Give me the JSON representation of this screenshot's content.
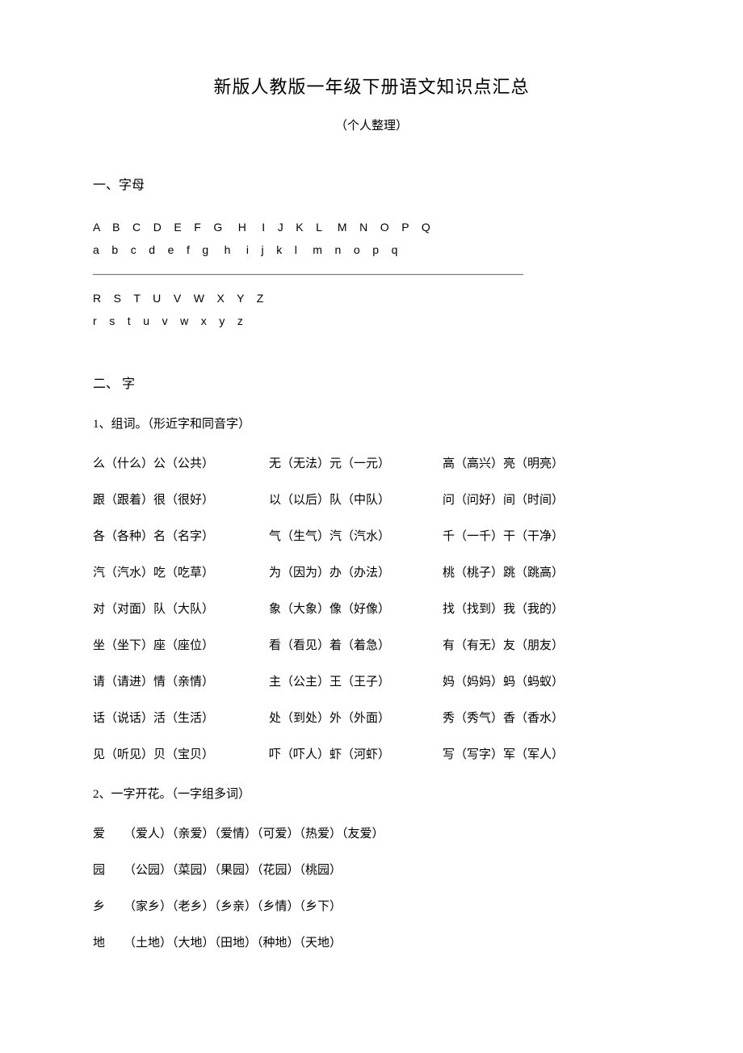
{
  "title": "新版人教版一年级下册语文知识点汇总",
  "subtitle": "（个人整理）",
  "section1": {
    "heading": "一、字母",
    "upper1": "A    B    C    D    E    F    G     H     I    J    K    L     M    N    O    P    Q",
    "lower1": "a    b    c    d    e    f    g     h     i    j    k    l     m    n    o    p    q",
    "dash": "—————————————————————————————————————————",
    "upper2": "R    S    T    U    V    W    X    Y    Z",
    "lower2": "r    s    t    u    v    w    x    y    z"
  },
  "section2": {
    "heading": "二、 字",
    "sub1": "1、组词。（形近字和同音字）",
    "rows": [
      [
        "么（什么）公（公共）",
        "无（无法）元（一元）",
        "高（高兴）亮（明亮）"
      ],
      [
        "跟（跟着）很（很好）",
        "以（以后）队（中队）",
        "问（问好）间（时间）"
      ],
      [
        "各（各种）名（名字）",
        "气（生气）汽（汽水）",
        "千（一千）干（干净）"
      ],
      [
        "汽（汽水）吃（吃草）",
        "为（因为）办（办法）",
        "桃（桃子）跳（跳高）"
      ],
      [
        "对（对面）队（大队）",
        "象（大象）像（好像）",
        "找（找到）我（我的）"
      ],
      [
        "坐（坐下）座（座位）",
        "看（看见）着（着急）",
        "有（有无）友（朋友）"
      ],
      [
        "请（请进）情（亲情）",
        "主（公主）王（王子）",
        "妈（妈妈）蚂（蚂蚁）"
      ],
      [
        "话（说话）活（生活）",
        "处（到处）外（外面）",
        "秀（秀气）香（香水）"
      ],
      [
        "见（听见）贝（宝贝）",
        "吓（吓人）虾（河虾）",
        "写（写字）军（军人）"
      ]
    ],
    "sub2": "2、一字开花。（一字组多词）",
    "bloom": [
      {
        "char": "爱",
        "words": "（爱人）（亲爱）（爱情）（可爱）（热爱）（友爱）"
      },
      {
        "char": "园",
        "words": "（公园）（菜园）（果园）（花园）（桃园）"
      },
      {
        "char": "乡",
        "words": "（家乡）（老乡）（乡亲）（乡情）（乡下）"
      },
      {
        "char": "地",
        "words": "（土地）（大地）（田地）（种地）（天地）"
      }
    ]
  }
}
